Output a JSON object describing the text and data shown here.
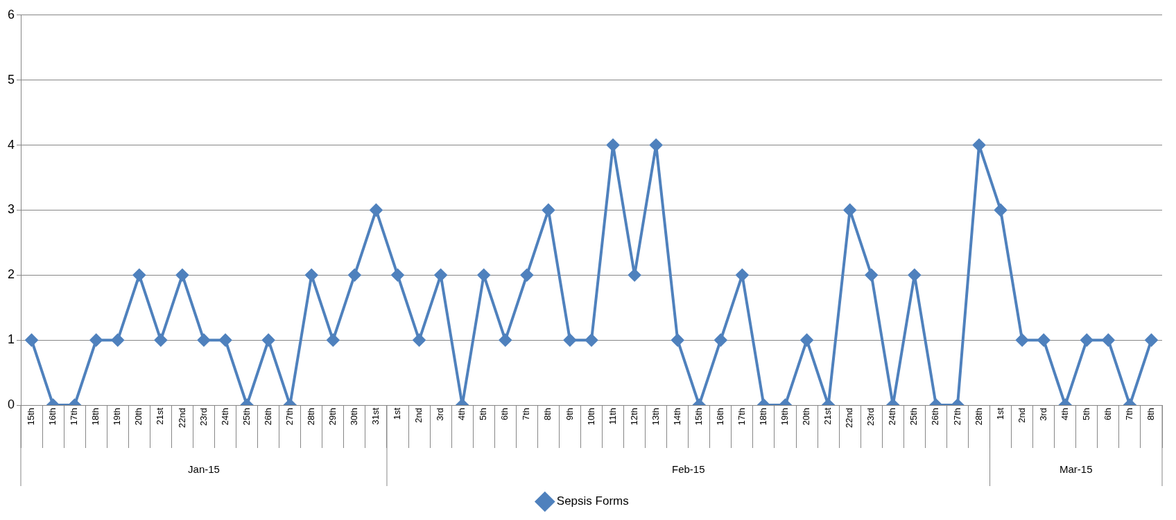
{
  "chart_data": {
    "type": "line",
    "categories": [
      "15th",
      "16th",
      "17th",
      "18th",
      "19th",
      "20th",
      "21st",
      "22nd",
      "23rd",
      "24th",
      "25th",
      "26th",
      "27th",
      "28th",
      "29th",
      "30th",
      "31st",
      "1st",
      "2nd",
      "3rd",
      "4th",
      "5th",
      "6th",
      "7th",
      "8th",
      "9th",
      "10th",
      "11th",
      "12th",
      "13th",
      "14th",
      "15th",
      "16th",
      "17th",
      "18th",
      "19th",
      "20th",
      "21st",
      "22nd",
      "23rd",
      "24th",
      "25th",
      "26th",
      "27th",
      "28th",
      "1st",
      "2nd",
      "3rd",
      "4th",
      "5th",
      "6th",
      "7th",
      "8th"
    ],
    "series": [
      {
        "name": "Sepsis Forms",
        "color": "#4f81bd",
        "values": [
          1,
          0,
          0,
          1,
          1,
          2,
          1,
          2,
          1,
          1,
          0,
          1,
          0,
          2,
          1,
          2,
          3,
          2,
          1,
          2,
          0,
          2,
          1,
          2,
          3,
          1,
          1,
          4,
          2,
          4,
          1,
          0,
          1,
          2,
          0,
          0,
          1,
          0,
          3,
          2,
          0,
          2,
          0,
          0,
          4,
          3,
          1,
          1,
          0,
          1,
          1,
          0,
          1
        ]
      }
    ],
    "annotations": [
      "Jan-15",
      "Feb-15",
      "Mar-15"
    ],
    "ylim": [
      0,
      6
    ],
    "yticks": [
      0,
      1,
      2,
      3,
      4,
      5,
      6
    ],
    "grid": "y",
    "legend": "bottom",
    "marker": "diamond",
    "line_style": "solid"
  }
}
